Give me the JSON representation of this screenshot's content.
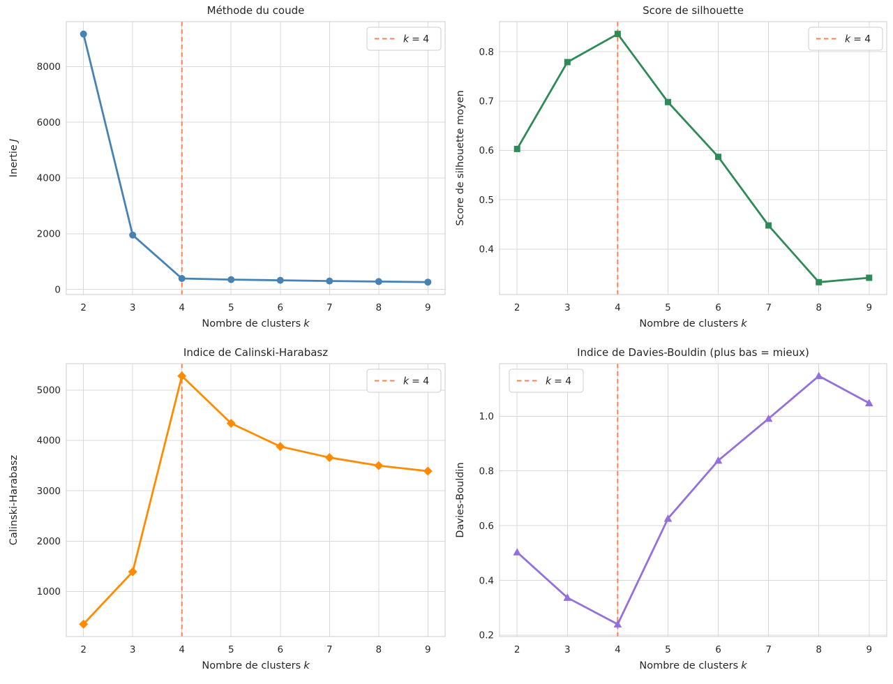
{
  "style": {
    "background": "#ffffff",
    "grid_color": "#d8d8d8",
    "spine_color": "#cccccc",
    "text_color": "#262626",
    "vline_color": "#FF7F50",
    "legend_border_color": "#cccccc",
    "legend_background": "#ffffff"
  },
  "chart_data": [
    {
      "type": "line",
      "title": "Méthode du coude",
      "xlabel": "Nombre de clusters",
      "xlabel_italic": "k",
      "ylabel": "Inertie",
      "ylabel_italic": "J",
      "color": "#4682B4",
      "marker": "circle",
      "x": [
        2,
        3,
        4,
        5,
        6,
        7,
        8,
        9
      ],
      "y": [
        9170,
        1950,
        390,
        350,
        325,
        300,
        280,
        260
      ],
      "xlim": [
        1.65,
        9.35
      ],
      "ylim": [
        -186,
        9616
      ],
      "xticks": [
        2,
        3,
        4,
        5,
        6,
        7,
        8,
        9
      ],
      "xtick_labels": [
        "2",
        "3",
        "4",
        "5",
        "6",
        "7",
        "8",
        "9"
      ],
      "yticks": [
        0,
        2000,
        4000,
        6000,
        8000
      ],
      "ytick_labels": [
        "0",
        "2000",
        "4000",
        "6000",
        "8000"
      ],
      "grid": true,
      "vline_x": 4,
      "legend_label_italic": "k",
      "legend_label_rest": "= 4",
      "legend_pos": "top-right"
    },
    {
      "type": "line",
      "title": "Score de silhouette",
      "xlabel": "Nombre de clusters",
      "xlabel_italic": "k",
      "ylabel": "Score de silhouette moyen",
      "ylabel_italic": "",
      "color": "#2E8B57",
      "marker": "square",
      "x": [
        2,
        3,
        4,
        5,
        6,
        7,
        8,
        9
      ],
      "y": [
        0.603,
        0.779,
        0.836,
        0.698,
        0.587,
        0.448,
        0.333,
        0.342
      ],
      "xlim": [
        1.65,
        9.35
      ],
      "ylim": [
        0.308,
        0.861
      ],
      "xticks": [
        2,
        3,
        4,
        5,
        6,
        7,
        8,
        9
      ],
      "xtick_labels": [
        "2",
        "3",
        "4",
        "5",
        "6",
        "7",
        "8",
        "9"
      ],
      "yticks": [
        0.4,
        0.5,
        0.6,
        0.7,
        0.8
      ],
      "ytick_labels": [
        "0.4",
        "0.5",
        "0.6",
        "0.7",
        "0.8"
      ],
      "grid": true,
      "vline_x": 4,
      "legend_label_italic": "k",
      "legend_label_rest": "= 4",
      "legend_pos": "top-right"
    },
    {
      "type": "line",
      "title": "Indice de Calinski-Harabasz",
      "xlabel": "Nombre de clusters",
      "xlabel_italic": "k",
      "ylabel": "Calinski-Harabasz",
      "ylabel_italic": "",
      "color": "#FF8C00",
      "marker": "diamond",
      "x": [
        2,
        3,
        4,
        5,
        6,
        7,
        8,
        9
      ],
      "y": [
        350,
        1390,
        5280,
        4340,
        3880,
        3660,
        3500,
        3390
      ],
      "xlim": [
        1.65,
        9.35
      ],
      "ylim": [
        104,
        5526
      ],
      "xticks": [
        2,
        3,
        4,
        5,
        6,
        7,
        8,
        9
      ],
      "xtick_labels": [
        "2",
        "3",
        "4",
        "5",
        "6",
        "7",
        "8",
        "9"
      ],
      "yticks": [
        1000,
        2000,
        3000,
        4000,
        5000
      ],
      "ytick_labels": [
        "1000",
        "2000",
        "3000",
        "4000",
        "5000"
      ],
      "grid": true,
      "vline_x": 4,
      "legend_label_italic": "k",
      "legend_label_rest": "= 4",
      "legend_pos": "top-right"
    },
    {
      "type": "line",
      "title": "Indice de Davies-Bouldin (plus bas = mieux)",
      "xlabel": "Nombre de clusters",
      "xlabel_italic": "k",
      "ylabel": "Davies-Bouldin",
      "ylabel_italic": "",
      "color": "#9370DB",
      "marker": "triangle",
      "x": [
        2,
        3,
        4,
        5,
        6,
        7,
        8,
        9
      ],
      "y": [
        0.503,
        0.337,
        0.24,
        0.626,
        0.838,
        0.991,
        1.147,
        1.048
      ],
      "xlim": [
        1.65,
        9.35
      ],
      "ylim": [
        0.195,
        1.192
      ],
      "xticks": [
        2,
        3,
        4,
        5,
        6,
        7,
        8,
        9
      ],
      "xtick_labels": [
        "2",
        "3",
        "4",
        "5",
        "6",
        "7",
        "8",
        "9"
      ],
      "yticks": [
        0.2,
        0.4,
        0.6,
        0.8,
        1.0
      ],
      "ytick_labels": [
        "0.2",
        "0.4",
        "0.6",
        "0.8",
        "1.0"
      ],
      "grid": true,
      "vline_x": 4,
      "legend_label_italic": "k",
      "legend_label_rest": "= 4",
      "legend_pos": "top-left"
    }
  ]
}
